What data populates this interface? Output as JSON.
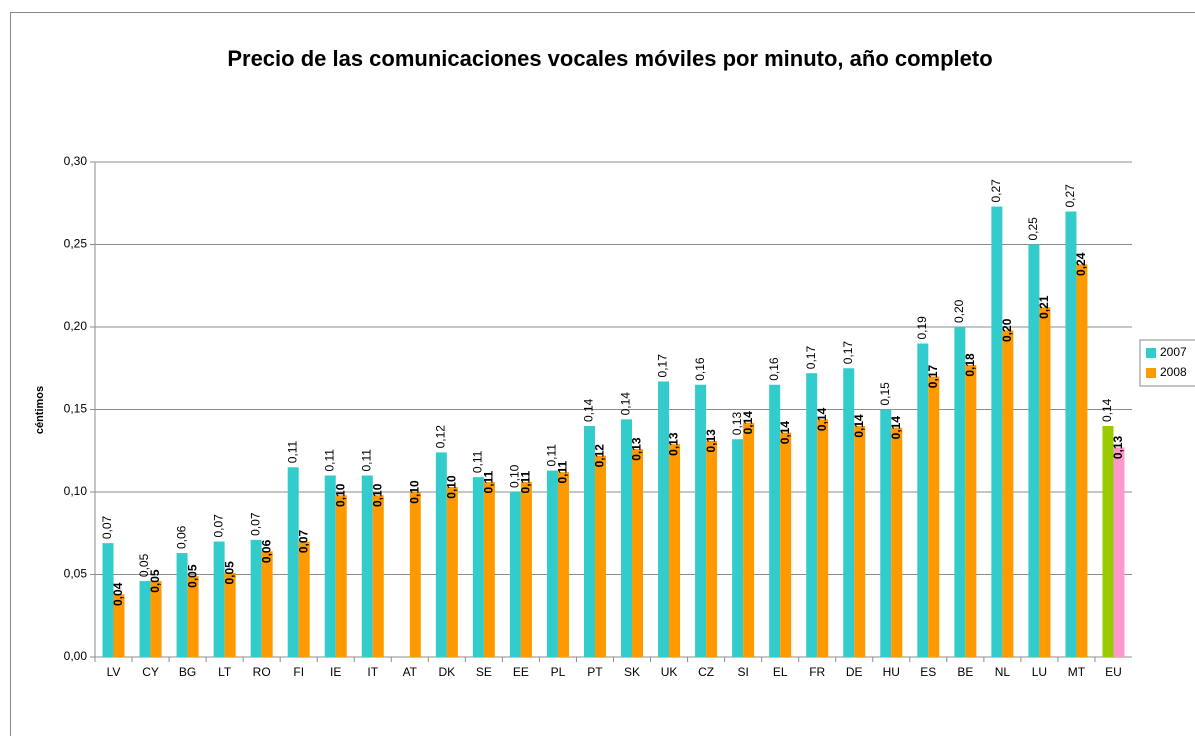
{
  "chart_data": {
    "type": "bar",
    "title": "Precio de las comunicaciones vocales móviles por minuto, año completo",
    "y_label": "céntimos",
    "categories": [
      "LV",
      "CY",
      "BG",
      "LT",
      "RO",
      "FI",
      "IE",
      "IT",
      "AT",
      "DK",
      "SE",
      "EE",
      "PL",
      "PT",
      "SK",
      "UK",
      "CZ",
      "SI",
      "EL",
      "FR",
      "DE",
      "HU",
      "ES",
      "BE",
      "NL",
      "LU",
      "MT",
      "EU"
    ],
    "series": [
      {
        "name": "2007",
        "color": "#33cccc",
        "values": [
          0.069,
          0.046,
          0.063,
          0.07,
          0.071,
          0.115,
          0.11,
          0.11,
          null,
          0.124,
          0.109,
          0.1,
          0.113,
          0.14,
          0.144,
          0.167,
          0.165,
          0.132,
          0.165,
          0.172,
          0.175,
          0.15,
          0.19,
          0.2,
          0.273,
          0.25,
          0.27,
          0.14
        ],
        "value_labels": [
          "0,07",
          "0,05",
          "0,06",
          "0,07",
          "0,07",
          "0,11",
          "0,11",
          "0,11",
          null,
          "0,12",
          "0,11",
          "0,10",
          "0,11",
          "0,14",
          "0,14",
          "0,17",
          "0,16",
          "0,13",
          "0,16",
          "0,17",
          "0,17",
          "0,15",
          "0,19",
          "0,20",
          "0,27",
          "0,25",
          "0,27",
          "0,14"
        ],
        "colors": [
          null,
          null,
          null,
          null,
          null,
          null,
          null,
          null,
          null,
          null,
          null,
          null,
          null,
          null,
          null,
          null,
          null,
          null,
          null,
          null,
          null,
          null,
          null,
          null,
          null,
          null,
          null,
          "#99cc00"
        ]
      },
      {
        "name": "2008",
        "color": "#ff9900",
        "values": [
          0.038,
          0.046,
          0.049,
          0.051,
          0.064,
          0.07,
          0.098,
          0.098,
          0.1,
          0.103,
          0.106,
          0.106,
          0.112,
          0.122,
          0.126,
          0.129,
          0.131,
          0.142,
          0.136,
          0.144,
          0.14,
          0.139,
          0.17,
          0.177,
          0.198,
          0.212,
          0.238,
          0.127
        ],
        "value_labels": [
          "0,04",
          "0,05",
          "0,05",
          "0,05",
          "0,06",
          "0,07",
          "0,10",
          "0,10",
          "0,10",
          "0,10",
          "0,11",
          "0,11",
          "0,11",
          "0,12",
          "0,13",
          "0,13",
          "0,13",
          "0,14",
          "0,14",
          "0,14",
          "0,14",
          "0,14",
          "0,17",
          "0,18",
          "0,20",
          "0,21",
          "0,24",
          "0,13"
        ],
        "colors": [
          null,
          null,
          null,
          null,
          null,
          null,
          null,
          null,
          null,
          null,
          null,
          null,
          null,
          null,
          null,
          null,
          null,
          null,
          null,
          null,
          null,
          null,
          null,
          null,
          null,
          null,
          null,
          "#ff99cc"
        ]
      }
    ],
    "ylim": [
      0,
      0.3
    ],
    "yticks": [
      {
        "value": 0,
        "label": "0,00"
      },
      {
        "value": 0.05,
        "label": "0,05"
      },
      {
        "value": 0.1,
        "label": "0,10"
      },
      {
        "value": 0.15,
        "label": "0,15"
      },
      {
        "value": 0.2,
        "label": "0,20"
      },
      {
        "value": 0.25,
        "label": "0,25"
      },
      {
        "value": 0.3,
        "label": "0,30"
      }
    ],
    "grid": true,
    "legend": "right"
  }
}
